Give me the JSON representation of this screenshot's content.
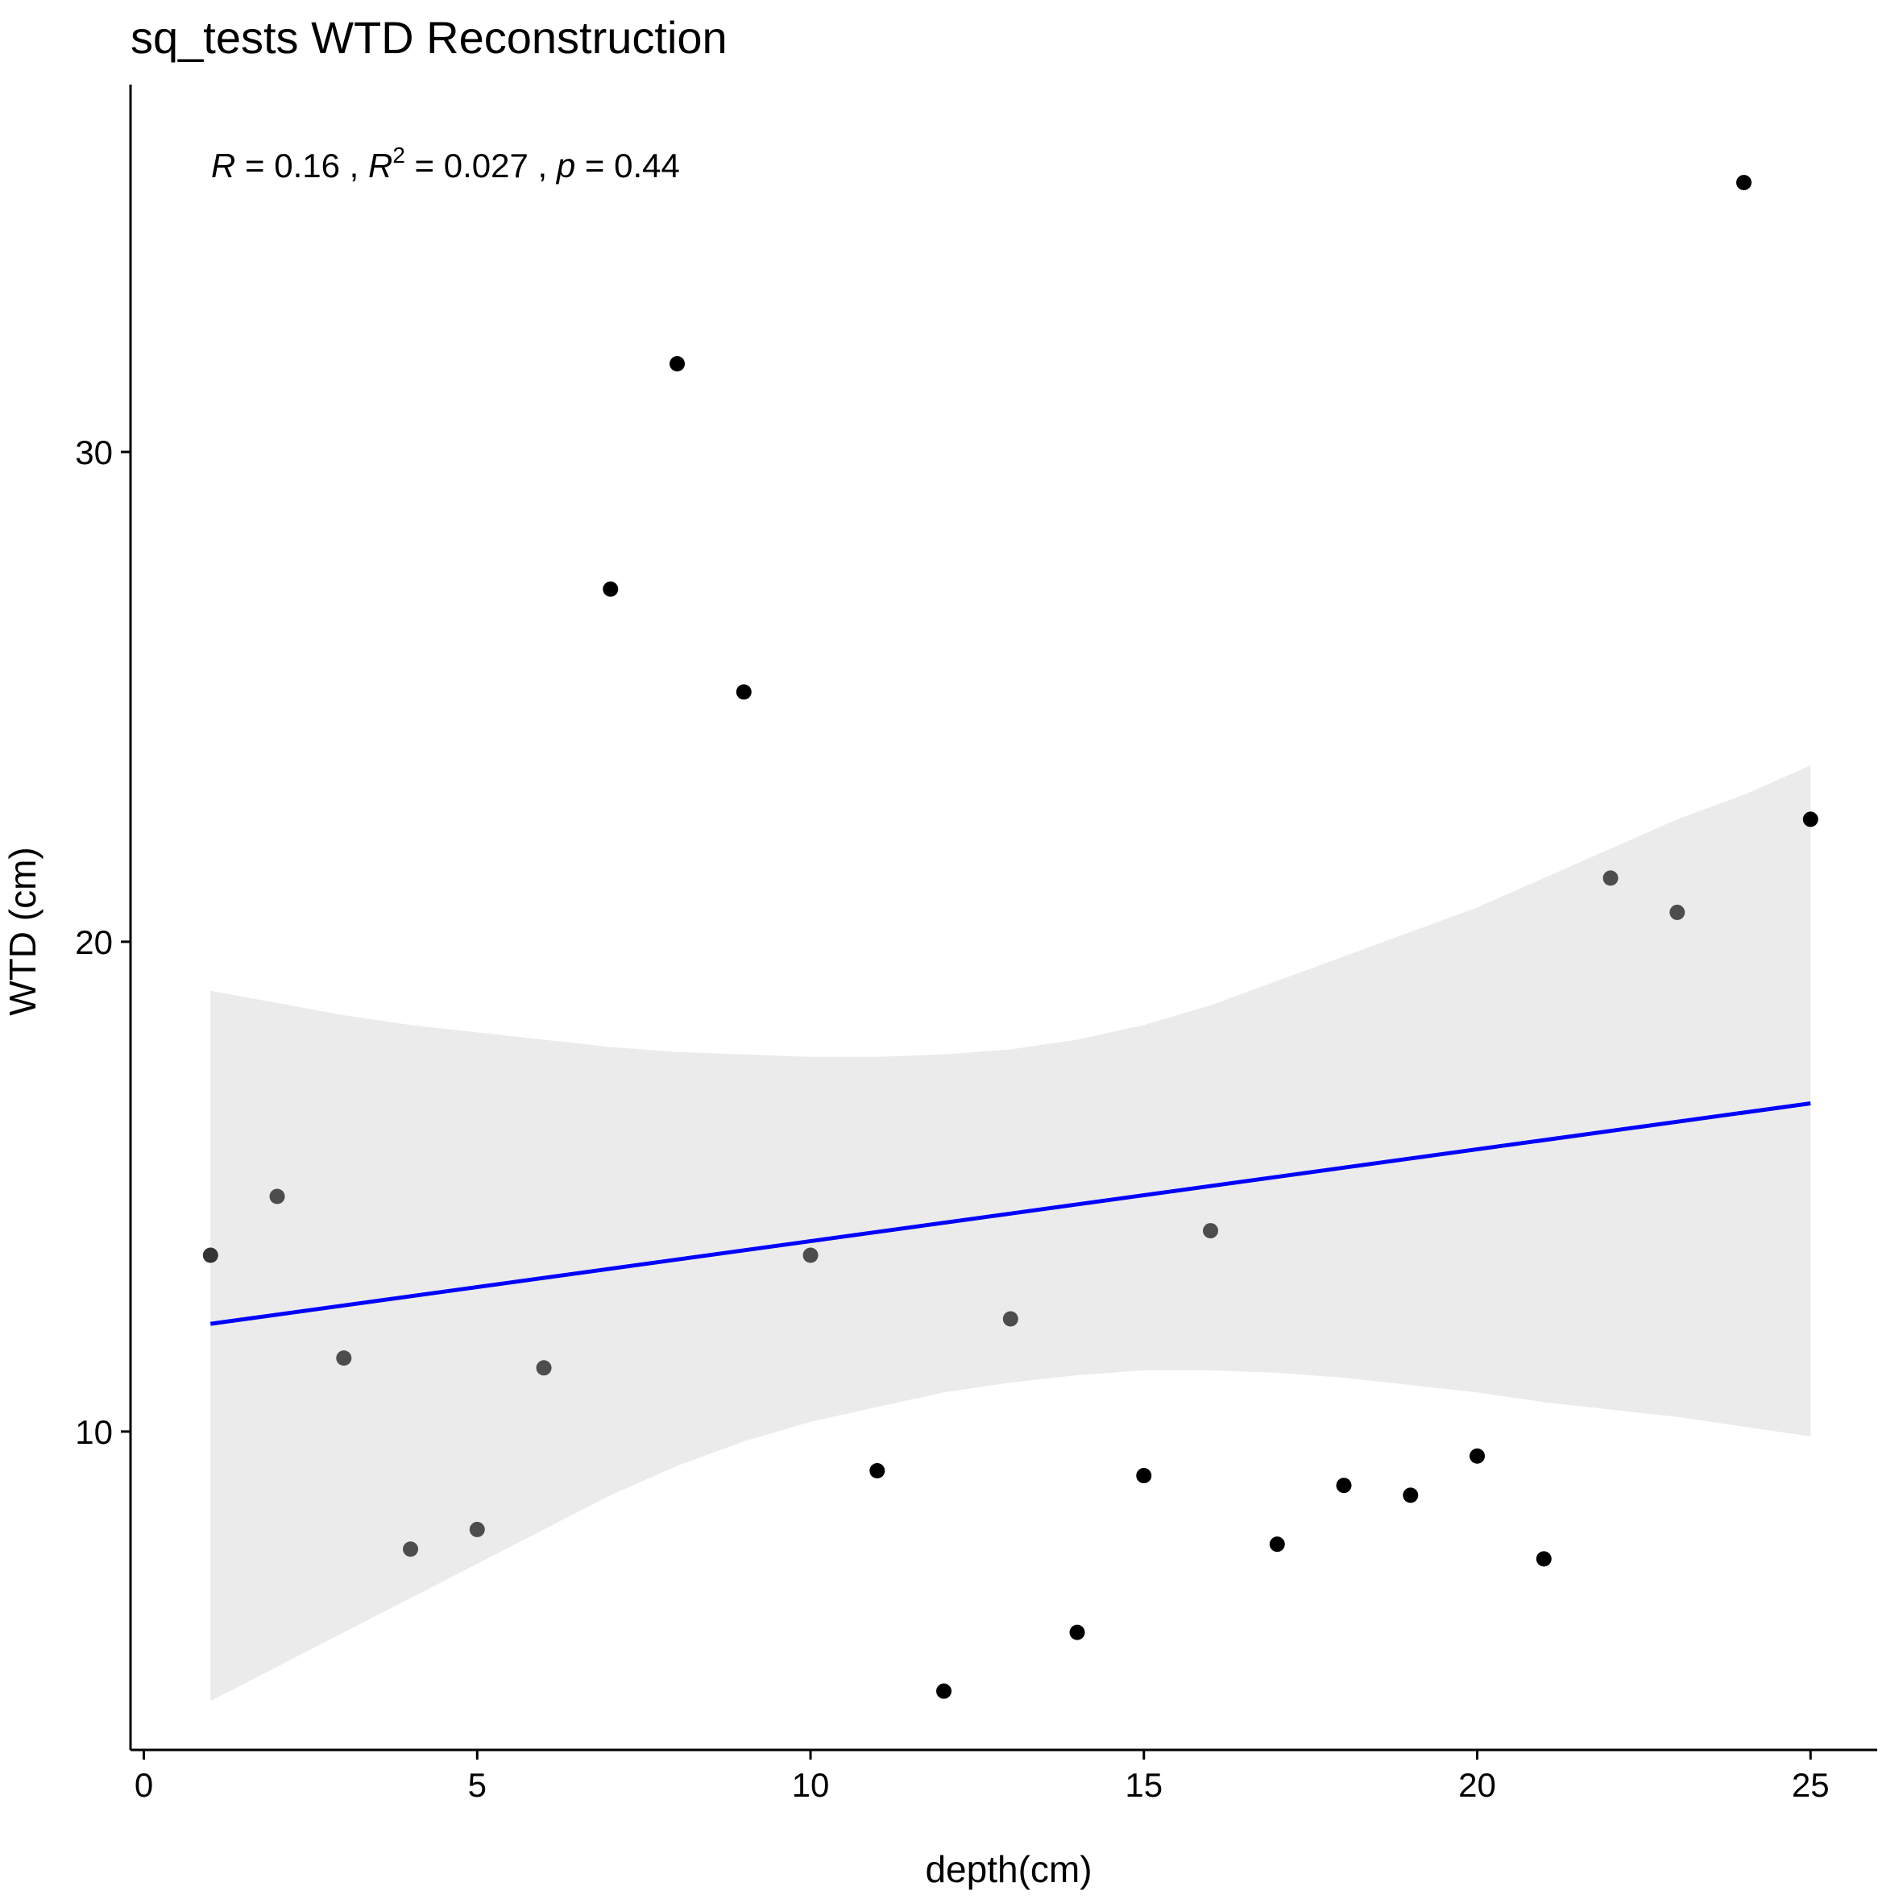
{
  "chart_data": {
    "type": "scatter",
    "title": "sq_tests WTD Reconstruction",
    "xlabel": "depth(cm)",
    "ylabel": "WTD (cm)",
    "xlim": [
      -0.2,
      26.0
    ],
    "ylim": [
      3.5,
      37.5
    ],
    "x_ticks": [
      0,
      5,
      10,
      15,
      20,
      25
    ],
    "y_ticks": [
      10,
      20,
      30
    ],
    "grid": false,
    "legend": "none",
    "annotation": {
      "R_symbol": "R",
      "R_value": " = 0.16 , ",
      "R2_symbol": "R",
      "R2_exp": "2",
      "R2_value": " = 0.027 , ",
      "p_symbol": "p",
      "p_value": " = 0.44"
    },
    "points": [
      {
        "x": 1,
        "y": 13.6,
        "shade": "#333333"
      },
      {
        "x": 2,
        "y": 14.8,
        "shade": "#4d4d4d"
      },
      {
        "x": 3,
        "y": 11.5,
        "shade": "#4d4d4d"
      },
      {
        "x": 4,
        "y": 7.6,
        "shade": "#4d4d4d"
      },
      {
        "x": 5,
        "y": 8.0,
        "shade": "#4d4d4d"
      },
      {
        "x": 6,
        "y": 11.3,
        "shade": "#4d4d4d"
      },
      {
        "x": 7,
        "y": 27.2,
        "shade": "#000000"
      },
      {
        "x": 8,
        "y": 31.8,
        "shade": "#000000"
      },
      {
        "x": 9,
        "y": 25.1,
        "shade": "#000000"
      },
      {
        "x": 10,
        "y": 13.6,
        "shade": "#4d4d4d"
      },
      {
        "x": 11,
        "y": 9.2,
        "shade": "#000000"
      },
      {
        "x": 12,
        "y": 4.7,
        "shade": "#000000"
      },
      {
        "x": 13,
        "y": 12.3,
        "shade": "#4d4d4d"
      },
      {
        "x": 14,
        "y": 5.9,
        "shade": "#000000"
      },
      {
        "x": 15,
        "y": 9.1,
        "shade": "#000000"
      },
      {
        "x": 16,
        "y": 14.1,
        "shade": "#4d4d4d"
      },
      {
        "x": 17,
        "y": 7.7,
        "shade": "#000000"
      },
      {
        "x": 18,
        "y": 8.9,
        "shade": "#000000"
      },
      {
        "x": 19,
        "y": 8.7,
        "shade": "#000000"
      },
      {
        "x": 20,
        "y": 9.5,
        "shade": "#000000"
      },
      {
        "x": 21,
        "y": 7.4,
        "shade": "#000000"
      },
      {
        "x": 22,
        "y": 21.3,
        "shade": "#4d4d4d"
      },
      {
        "x": 23,
        "y": 20.6,
        "shade": "#4d4d4d"
      },
      {
        "x": 24,
        "y": 35.5,
        "shade": "#000000"
      },
      {
        "x": 25,
        "y": 22.5,
        "shade": "#000000"
      }
    ],
    "fit": {
      "x": [
        1,
        25
      ],
      "y": [
        12.2,
        16.7
      ],
      "color": "#0000ff"
    },
    "confidence_band": {
      "x": [
        1,
        2,
        3,
        4,
        5,
        6,
        7,
        8,
        9,
        10,
        11,
        12,
        13,
        14,
        15,
        16,
        17,
        18,
        19,
        20,
        21,
        22,
        23,
        24,
        25
      ],
      "upper": [
        19.0,
        18.75,
        18.5,
        18.3,
        18.15,
        18.0,
        17.85,
        17.75,
        17.7,
        17.65,
        17.65,
        17.7,
        17.8,
        18.0,
        18.3,
        18.7,
        19.2,
        19.7,
        20.2,
        20.7,
        21.3,
        21.9,
        22.5,
        23.0,
        23.6
      ],
      "lower": [
        4.5,
        5.2,
        5.9,
        6.6,
        7.3,
        8.0,
        8.7,
        9.3,
        9.8,
        10.2,
        10.5,
        10.8,
        11.0,
        11.15,
        11.25,
        11.25,
        11.2,
        11.1,
        10.95,
        10.8,
        10.6,
        10.45,
        10.3,
        10.1,
        9.9
      ],
      "color": "#ebebeb"
    }
  }
}
